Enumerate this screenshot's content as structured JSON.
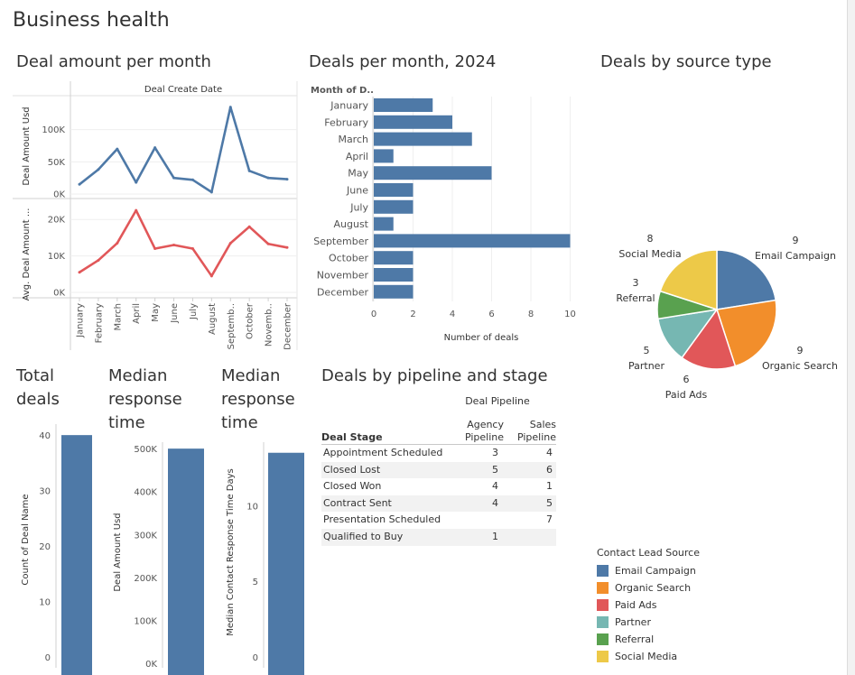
{
  "dashboard": {
    "title": "Business health"
  },
  "colors": {
    "blue": "#4e79a7",
    "red": "#e15759",
    "orange": "#f28e2b",
    "teal": "#76b7b2",
    "green": "#59a14f",
    "yellow": "#edc948"
  },
  "line_panel": {
    "title": "Deal amount per month",
    "header": "Deal Create Date",
    "ylabel_top": "Deal Amount Usd",
    "ylabel_bottom": "Avg. Deal Amount ...",
    "months": [
      "January",
      "February",
      "March",
      "April",
      "May",
      "June",
      "July",
      "August",
      "Septemb..",
      "October",
      "Novemb..",
      "December"
    ],
    "top_ticks": [
      "0K",
      "50K",
      "100K"
    ],
    "bottom_ticks": [
      "0K",
      "10K",
      "20K"
    ]
  },
  "bar_panel": {
    "title": "Deals per month, 2024",
    "header": "Month of D..",
    "xlabel": "Number of deals",
    "ticks": [
      "0",
      "2",
      "4",
      "6",
      "8",
      "10"
    ]
  },
  "pie_panel": {
    "title": "Deals by source type",
    "labels": [
      {
        "name": "Email Campaign",
        "value": "9"
      },
      {
        "name": "Organic Search",
        "value": "9"
      },
      {
        "name": "Paid Ads",
        "value": "6"
      },
      {
        "name": "Partner",
        "value": "5"
      },
      {
        "name": "Referral",
        "value": "3"
      },
      {
        "name": "Social Media",
        "value": "8"
      }
    ]
  },
  "legend": {
    "title": "Contact Lead Source",
    "items": [
      "Email Campaign",
      "Organic Search",
      "Paid Ads",
      "Partner",
      "Referral",
      "Social Media"
    ]
  },
  "kpi": [
    {
      "title": "Total deals",
      "ylabel": "Count of Deal Name",
      "ticks": [
        "0",
        "10",
        "20",
        "30",
        "40"
      ]
    },
    {
      "title": "Median response time",
      "ylabel": "Deal Amount Usd",
      "ticks": [
        "0K",
        "100K",
        "200K",
        "300K",
        "400K",
        "500K"
      ]
    },
    {
      "title": "Median response time",
      "ylabel": "Median Contact Response Time Days",
      "ticks": [
        "0",
        "5",
        "10"
      ]
    }
  ],
  "table": {
    "title": "Deals by pipeline and stage",
    "group_header": "Deal Pipeline",
    "row_header": "Deal Stage",
    "col1": [
      "Agency",
      "Pipeline"
    ],
    "col2": [
      "Sales",
      "Pipeline"
    ],
    "rows": [
      {
        "stage": "Appointment Scheduled",
        "agency": "3",
        "sales": "4"
      },
      {
        "stage": "Closed Lost",
        "agency": "5",
        "sales": "6"
      },
      {
        "stage": "Closed Won",
        "agency": "4",
        "sales": "1"
      },
      {
        "stage": "Contract Sent",
        "agency": "4",
        "sales": "5"
      },
      {
        "stage": "Presentation Scheduled",
        "agency": "",
        "sales": "7"
      },
      {
        "stage": "Qualified to Buy",
        "agency": "1",
        "sales": ""
      }
    ]
  },
  "chart_data": [
    {
      "type": "line",
      "title": "Deal amount per month",
      "x": [
        "January",
        "February",
        "March",
        "April",
        "May",
        "June",
        "July",
        "August",
        "September",
        "October",
        "November",
        "December"
      ],
      "series": [
        {
          "name": "Deal Amount Usd",
          "values": [
            15000,
            38000,
            70000,
            18000,
            72000,
            25000,
            22000,
            3000,
            135000,
            36000,
            25000,
            23000
          ],
          "ylim": [
            0,
            150000
          ]
        },
        {
          "name": "Avg. Deal Amount Usd",
          "values": [
            5500,
            8800,
            13500,
            22500,
            12000,
            13000,
            12000,
            4500,
            13500,
            18000,
            13300,
            12300
          ],
          "ylim": [
            0,
            25000
          ]
        }
      ]
    },
    {
      "type": "bar",
      "title": "Deals per month, 2024",
      "categories": [
        "January",
        "February",
        "March",
        "April",
        "May",
        "June",
        "July",
        "August",
        "September",
        "October",
        "November",
        "December"
      ],
      "values": [
        3,
        4,
        5,
        1,
        6,
        2,
        2,
        1,
        10,
        2,
        2,
        2
      ],
      "xlabel": "Number of deals",
      "xlim": [
        0,
        10.5
      ]
    },
    {
      "type": "pie",
      "title": "Deals by source type",
      "categories": [
        "Email Campaign",
        "Organic Search",
        "Paid Ads",
        "Partner",
        "Referral",
        "Social Media"
      ],
      "values": [
        9,
        9,
        6,
        5,
        3,
        8
      ]
    },
    {
      "type": "bar",
      "title": "Total deals",
      "ylabel": "Count of Deal Name",
      "values": [
        40
      ],
      "ylim": [
        0,
        41
      ]
    },
    {
      "type": "bar",
      "title": "Median response time",
      "ylabel": "Deal Amount Usd",
      "values": [
        500000
      ],
      "ylim": [
        0,
        515000
      ]
    },
    {
      "type": "bar",
      "title": "Median response time",
      "ylabel": "Median Contact Response Time Days",
      "values": [
        13.5
      ],
      "ylim": [
        0,
        14.2
      ]
    },
    {
      "type": "table",
      "title": "Deals by pipeline and stage",
      "columns": [
        "Deal Stage",
        "Agency Pipeline",
        "Sales Pipeline"
      ],
      "rows": [
        [
          "Appointment Scheduled",
          3,
          4
        ],
        [
          "Closed Lost",
          5,
          6
        ],
        [
          "Closed Won",
          4,
          1
        ],
        [
          "Contract Sent",
          4,
          5
        ],
        [
          "Presentation Scheduled",
          null,
          7
        ],
        [
          "Qualified to Buy",
          1,
          null
        ]
      ]
    }
  ]
}
